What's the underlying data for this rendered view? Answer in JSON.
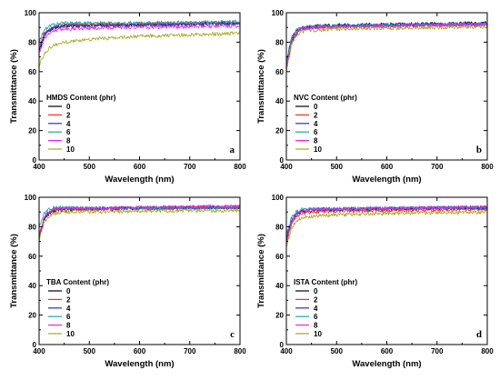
{
  "chart_data": [
    {
      "type": "line",
      "panel_letter": "a",
      "xlabel": "Wavelength (nm)",
      "ylabel": "Transmittance (%)",
      "xlim": [
        400,
        800
      ],
      "ylim": [
        0,
        100
      ],
      "xticks": [
        400,
        500,
        600,
        700,
        800
      ],
      "yticks": [
        0,
        20,
        40,
        60,
        80,
        100
      ],
      "grid": false,
      "legend_position": "left",
      "legend_title": "HMDS Content (phr)",
      "x": [
        400,
        410,
        420,
        430,
        450,
        500,
        600,
        700,
        800
      ],
      "series": [
        {
          "name": "0",
          "color": "#000000",
          "values": [
            74,
            84,
            88,
            90,
            91,
            91.5,
            92,
            92.5,
            93
          ]
        },
        {
          "name": "2",
          "color": "#ff2a1a",
          "values": [
            77,
            86,
            89,
            91,
            92,
            92,
            92.5,
            93,
            93.5
          ]
        },
        {
          "name": "4",
          "color": "#2a2adf",
          "values": [
            75,
            85,
            88,
            90,
            91,
            91,
            91.5,
            92,
            92.5
          ]
        },
        {
          "name": "6",
          "color": "#1aa6a6",
          "values": [
            80,
            88,
            91,
            92,
            93,
            93,
            93,
            93.5,
            94
          ]
        },
        {
          "name": "8",
          "color": "#ee22ee",
          "values": [
            72,
            82,
            86,
            88,
            89,
            89.5,
            90,
            90.5,
            91
          ]
        },
        {
          "name": "10",
          "color": "#a6a61a",
          "values": [
            64,
            72,
            76,
            78,
            80,
            82,
            84,
            85,
            86
          ]
        }
      ]
    },
    {
      "type": "line",
      "panel_letter": "b",
      "xlabel": "Wavelength (nm)",
      "ylabel": "Transmittance (%)",
      "xlim": [
        400,
        800
      ],
      "ylim": [
        0,
        100
      ],
      "xticks": [
        400,
        500,
        600,
        700,
        800
      ],
      "yticks": [
        0,
        20,
        40,
        60,
        80,
        100
      ],
      "grid": false,
      "legend_position": "left",
      "legend_title": "NVC Content (phr)",
      "x": [
        400,
        410,
        420,
        430,
        450,
        500,
        600,
        700,
        800
      ],
      "series": [
        {
          "name": "0",
          "color": "#000000",
          "values": [
            66,
            82,
            88,
            90,
            91,
            91.5,
            92,
            92.5,
            93
          ]
        },
        {
          "name": "2",
          "color": "#ff2a1a",
          "values": [
            64,
            80,
            86,
            89,
            90,
            90.5,
            91,
            91.5,
            92
          ]
        },
        {
          "name": "4",
          "color": "#2a2adf",
          "values": [
            62,
            80,
            86,
            89,
            90,
            91,
            91.5,
            92,
            92.5
          ]
        },
        {
          "name": "6",
          "color": "#1aa6a6",
          "values": [
            67,
            83,
            88,
            90,
            91,
            91,
            91.5,
            92,
            92.5
          ]
        },
        {
          "name": "8",
          "color": "#ee22ee",
          "values": [
            63,
            80,
            87,
            89,
            90,
            90.5,
            91,
            91.5,
            92
          ]
        },
        {
          "name": "10",
          "color": "#a6a61a",
          "values": [
            60,
            78,
            85,
            87,
            88,
            89,
            89.5,
            90,
            90.5
          ]
        }
      ]
    },
    {
      "type": "line",
      "panel_letter": "c",
      "xlabel": "Wavelength (nm)",
      "ylabel": "Transmittance (%)",
      "xlim": [
        400,
        800
      ],
      "ylim": [
        0,
        100
      ],
      "xticks": [
        400,
        500,
        600,
        700,
        800
      ],
      "yticks": [
        0,
        20,
        40,
        60,
        80,
        100
      ],
      "grid": false,
      "legend_position": "left",
      "legend_title": "TBA Content (phr)",
      "x": [
        400,
        410,
        420,
        430,
        450,
        500,
        600,
        700,
        800
      ],
      "series": [
        {
          "name": "0",
          "color": "#000000",
          "values": [
            73,
            85,
            89,
            91,
            91.5,
            92,
            92.5,
            93,
            93
          ]
        },
        {
          "name": "2",
          "color": "#ff2a1a",
          "values": [
            75,
            86,
            90,
            91.5,
            92,
            92,
            92.5,
            93,
            93.5
          ]
        },
        {
          "name": "4",
          "color": "#2a2adf",
          "values": [
            72,
            86,
            90,
            92,
            92.5,
            92.5,
            93,
            93,
            93.5
          ]
        },
        {
          "name": "6",
          "color": "#1aa6a6",
          "values": [
            80,
            89,
            92,
            93,
            93,
            92.5,
            92.5,
            93,
            93
          ]
        },
        {
          "name": "8",
          "color": "#ee22ee",
          "values": [
            74,
            86,
            90,
            92,
            92.5,
            92.5,
            93,
            93.5,
            94
          ]
        },
        {
          "name": "10",
          "color": "#a6a61a",
          "values": [
            70,
            83,
            87,
            89,
            90,
            90,
            90.5,
            91,
            91
          ]
        }
      ]
    },
    {
      "type": "line",
      "panel_letter": "d",
      "xlabel": "Wavelength (nm)",
      "ylabel": "Transmittance (%)",
      "xlim": [
        400,
        800
      ],
      "ylim": [
        0,
        100
      ],
      "xticks": [
        400,
        500,
        600,
        700,
        800
      ],
      "yticks": [
        0,
        20,
        40,
        60,
        80,
        100
      ],
      "grid": false,
      "legend_position": "left",
      "legend_title": "ISTA Content (phr)",
      "x": [
        400,
        410,
        420,
        430,
        450,
        500,
        600,
        700,
        800
      ],
      "series": [
        {
          "name": "0",
          "color": "#000000",
          "values": [
            70,
            84,
            88,
            90,
            91,
            91.5,
            92,
            92.5,
            93
          ]
        },
        {
          "name": "2",
          "color": "#ff2a1a",
          "values": [
            68,
            82,
            87,
            89,
            90,
            90.5,
            91,
            91.5,
            92
          ]
        },
        {
          "name": "4",
          "color": "#2a2adf",
          "values": [
            72,
            85,
            89,
            91,
            92,
            92,
            92.5,
            93,
            93
          ]
        },
        {
          "name": "6",
          "color": "#1aa6a6",
          "values": [
            74,
            86,
            90,
            91.5,
            92,
            92,
            92.5,
            93,
            93
          ]
        },
        {
          "name": "8",
          "color": "#ee22ee",
          "values": [
            70,
            83,
            88,
            90.5,
            91.5,
            92,
            92.5,
            93,
            93.5
          ]
        },
        {
          "name": "10",
          "color": "#a6a61a",
          "values": [
            66,
            79,
            84,
            86,
            87,
            88,
            89,
            89.5,
            90
          ]
        }
      ]
    }
  ]
}
